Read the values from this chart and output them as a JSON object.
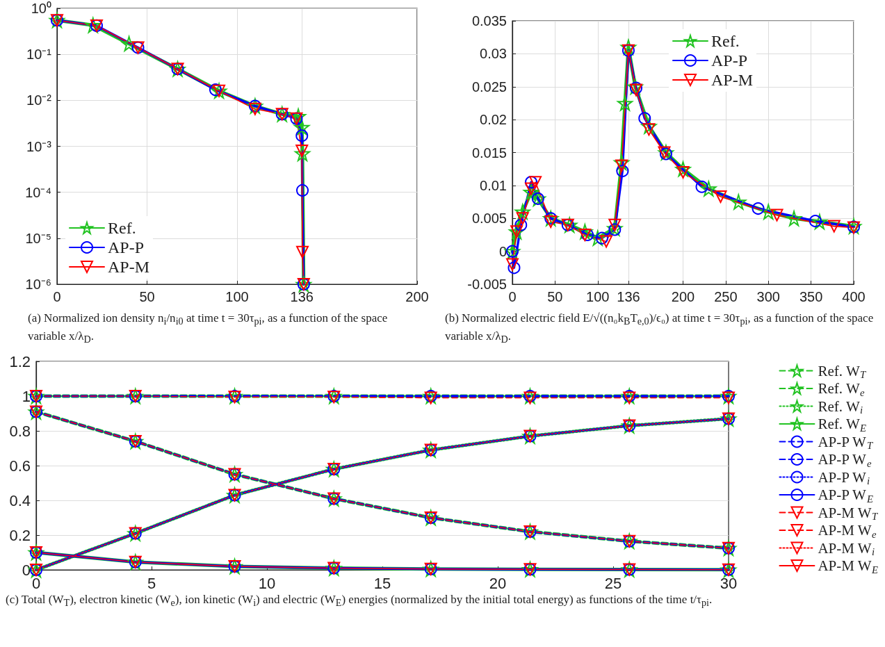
{
  "chart_data": [
    {
      "type": "line",
      "log": "y",
      "grid": true,
      "legend": "bottom left",
      "xlim": [
        0,
        200
      ],
      "xticks": [
        0,
        50,
        100,
        136,
        200
      ],
      "ylim": [
        1e-06,
        1
      ],
      "yticks": [
        {
          "value": 1e-06,
          "label": "10⁻⁶"
        },
        {
          "value": 1e-05,
          "label": "10⁻⁵"
        },
        {
          "value": 0.0001,
          "label": "10⁻⁴"
        },
        {
          "value": 0.001,
          "label": "10⁻³"
        },
        {
          "value": 0.01,
          "label": "10⁻²"
        },
        {
          "value": 0.1,
          "label": "10⁻¹"
        },
        {
          "value": 1,
          "label": "10⁰"
        }
      ],
      "annotations": [
        "(a) Normalized ion density n$_{i}$/n$_{i0}$ at time t = 30τ$_{pi}$, as a function of the space variable x/λ$_{D}$."
      ],
      "series": [
        {
          "name": "Ref.",
          "color": "#22c322",
          "marker": "star",
          "line_style": "solid",
          "x": [
            0,
            20,
            40,
            67,
            90,
            110,
            125,
            134,
            136,
            136.3,
            137
          ],
          "values": [
            0.55,
            0.43,
            0.17,
            0.048,
            0.016,
            0.0075,
            0.005,
            0.0045,
            0.0026,
            0.0007,
            1e-06
          ]
        },
        {
          "name": "AP-P",
          "color": "#0000ff",
          "marker": "circle",
          "line_style": "solid",
          "x": [
            0,
            22,
            45,
            67,
            88,
            110,
            125,
            133,
            136,
            136.3,
            137
          ],
          "values": [
            0.55,
            0.42,
            0.14,
            0.048,
            0.017,
            0.0075,
            0.005,
            0.004,
            0.0017,
            0.00011,
            1e-06
          ]
        },
        {
          "name": "AP-M",
          "color": "#ff0000",
          "marker": "triangle",
          "line_style": "solid",
          "x": [
            0,
            22,
            45,
            67,
            90,
            110,
            125,
            133,
            136,
            136.3,
            137
          ],
          "values": [
            0.55,
            0.42,
            0.14,
            0.048,
            0.016,
            0.0065,
            0.005,
            0.004,
            0.0008,
            5e-06,
            1e-06
          ]
        }
      ]
    },
    {
      "type": "line",
      "grid": true,
      "legend": "top right",
      "xlim": [
        0,
        400
      ],
      "xticks": [
        0,
        50,
        100,
        136,
        200,
        250,
        300,
        350,
        400
      ],
      "ylim": [
        -0.005,
        0.035
      ],
      "yticks": [
        -0.005,
        0,
        0.005,
        0.01,
        0.015,
        0.02,
        0.025,
        0.03,
        0.035
      ],
      "annotations": [
        "(b) Normalized electric field E/√((n₀k$_{B}$T$_{e,0}$)/ϵ₀) at time t = 30τ$_{pi}$, as a function of the space variable x/λ$_{D}$."
      ],
      "series": [
        {
          "name": "Ref.",
          "color": "#22c322",
          "marker": "star",
          "line_style": "solid",
          "x": [
            0,
            5,
            12,
            22,
            30,
            45,
            67,
            85,
            100,
            120,
            128,
            132,
            136,
            144,
            160,
            180,
            200,
            230,
            265,
            300,
            330,
            360,
            400
          ],
          "values": [
            0,
            0.003,
            0.006,
            0.009,
            0.008,
            0.005,
            0.004,
            0.003,
            0.002,
            0.0035,
            0.0135,
            0.0225,
            0.031,
            0.025,
            0.019,
            0.015,
            0.0125,
            0.0095,
            0.0075,
            0.006,
            0.005,
            0.0045,
            0.0038
          ]
        },
        {
          "name": "AP-P",
          "color": "#0000ff",
          "marker": "circle",
          "line_style": "solid",
          "x": [
            0,
            2,
            10,
            22,
            30,
            45,
            65,
            88,
            105,
            120,
            129,
            136,
            145,
            155,
            180,
            222,
            288,
            355,
            400
          ],
          "values": [
            0,
            -0.0025,
            0.004,
            0.0105,
            0.008,
            0.005,
            0.004,
            0.0025,
            0.002,
            0.0033,
            0.0122,
            0.0305,
            0.0248,
            0.0202,
            0.0148,
            0.0098,
            0.0065,
            0.0046,
            0.0037
          ]
        },
        {
          "name": "AP-M",
          "color": "#ff0000",
          "marker": "triangle",
          "line_style": "solid",
          "x": [
            0,
            5,
            12,
            22,
            27,
            45,
            65,
            85,
            110,
            120,
            128,
            136,
            145,
            160,
            178,
            200,
            244,
            310,
            377,
            400
          ],
          "values": [
            -0.002,
            0.003,
            0.005,
            0.0095,
            0.0105,
            0.0045,
            0.004,
            0.0025,
            0.0015,
            0.004,
            0.013,
            0.0305,
            0.0245,
            0.0185,
            0.015,
            0.012,
            0.0083,
            0.0055,
            0.0038,
            0.0036
          ]
        }
      ]
    },
    {
      "type": "line",
      "grid": "y",
      "legend": "right",
      "x": [
        0,
        4.3,
        8.6,
        12.9,
        17.1,
        21.4,
        25.7,
        30
      ],
      "xlim": [
        0,
        30
      ],
      "xticks": [
        0,
        5,
        10,
        15,
        20,
        25,
        30
      ],
      "ylim": [
        0,
        1.2
      ],
      "yticks": [
        0,
        0.2,
        0.4,
        0.6,
        0.8,
        1,
        1.2
      ],
      "annotations": [
        "(c) Total (W$_{T}$), electron kinetic (W$_{e}$), ion kinetic (W$_{i}$) and electric (W$_{E}$) energies (normalized by the initial total energy) as functions of the time t/τ$_{pi}$."
      ],
      "series": [
        {
          "name": "Ref. W$_{T}$",
          "color": "#22c322",
          "marker": "star",
          "line_style": "dashed",
          "values": [
            1,
            1,
            1,
            1,
            1,
            1,
            1,
            1
          ]
        },
        {
          "name": "Ref. W$_{e}$",
          "color": "#22c322",
          "marker": "star",
          "line_style": "dashed",
          "values": [
            0.91,
            0.74,
            0.55,
            0.41,
            0.3,
            0.22,
            0.165,
            0.125
          ]
        },
        {
          "name": "Ref. W$_{i}$",
          "color": "#22c322",
          "marker": "star",
          "line_style": "dotted",
          "values": [
            0,
            0.21,
            0.43,
            0.58,
            0.69,
            0.77,
            0.83,
            0.87
          ]
        },
        {
          "name": "Ref. W$_{E}$",
          "color": "#22c322",
          "marker": "star",
          "line_style": "solid",
          "values": [
            0.1,
            0.045,
            0.02,
            0.01,
            0.005,
            0.003,
            0.002,
            0.001
          ]
        },
        {
          "name": "AP-P W$_{T}$",
          "color": "#0000ff",
          "marker": "circle",
          "line_style": "dashed",
          "values": [
            1,
            1,
            1,
            1,
            1,
            1,
            1,
            1
          ]
        },
        {
          "name": "AP-P W$_{e}$",
          "color": "#0000ff",
          "marker": "circle",
          "line_style": "dashed",
          "values": [
            0.91,
            0.74,
            0.55,
            0.41,
            0.3,
            0.22,
            0.165,
            0.125
          ]
        },
        {
          "name": "AP-P W$_{i}$",
          "color": "#0000ff",
          "marker": "circle",
          "line_style": "dotted",
          "values": [
            0,
            0.21,
            0.43,
            0.58,
            0.69,
            0.77,
            0.83,
            0.87
          ]
        },
        {
          "name": "AP-P W$_{E}$",
          "color": "#0000ff",
          "marker": "circle",
          "line_style": "solid",
          "values": [
            0.1,
            0.045,
            0.02,
            0.01,
            0.005,
            0.003,
            0.002,
            0.001
          ]
        },
        {
          "name": "AP-M W$_{T}$",
          "color": "#ff0000",
          "marker": "triangle",
          "line_style": "dashed",
          "values": [
            1,
            1,
            0.995,
            0.995,
            0.99,
            0.99,
            0.99,
            0.99
          ]
        },
        {
          "name": "AP-M W$_{e}$",
          "color": "#ff0000",
          "marker": "triangle",
          "line_style": "dashed",
          "values": [
            0.91,
            0.74,
            0.55,
            0.41,
            0.3,
            0.22,
            0.165,
            0.125
          ]
        },
        {
          "name": "AP-M W$_{i}$",
          "color": "#ff0000",
          "marker": "triangle",
          "line_style": "dotted",
          "values": [
            0,
            0.21,
            0.43,
            0.58,
            0.69,
            0.77,
            0.83,
            0.87
          ]
        },
        {
          "name": "AP-M W$_{E}$",
          "color": "#ff0000",
          "marker": "triangle",
          "line_style": "solid",
          "values": [
            0.1,
            0.045,
            0.02,
            0.01,
            0.005,
            0.003,
            0.002,
            0.001
          ]
        }
      ]
    }
  ]
}
